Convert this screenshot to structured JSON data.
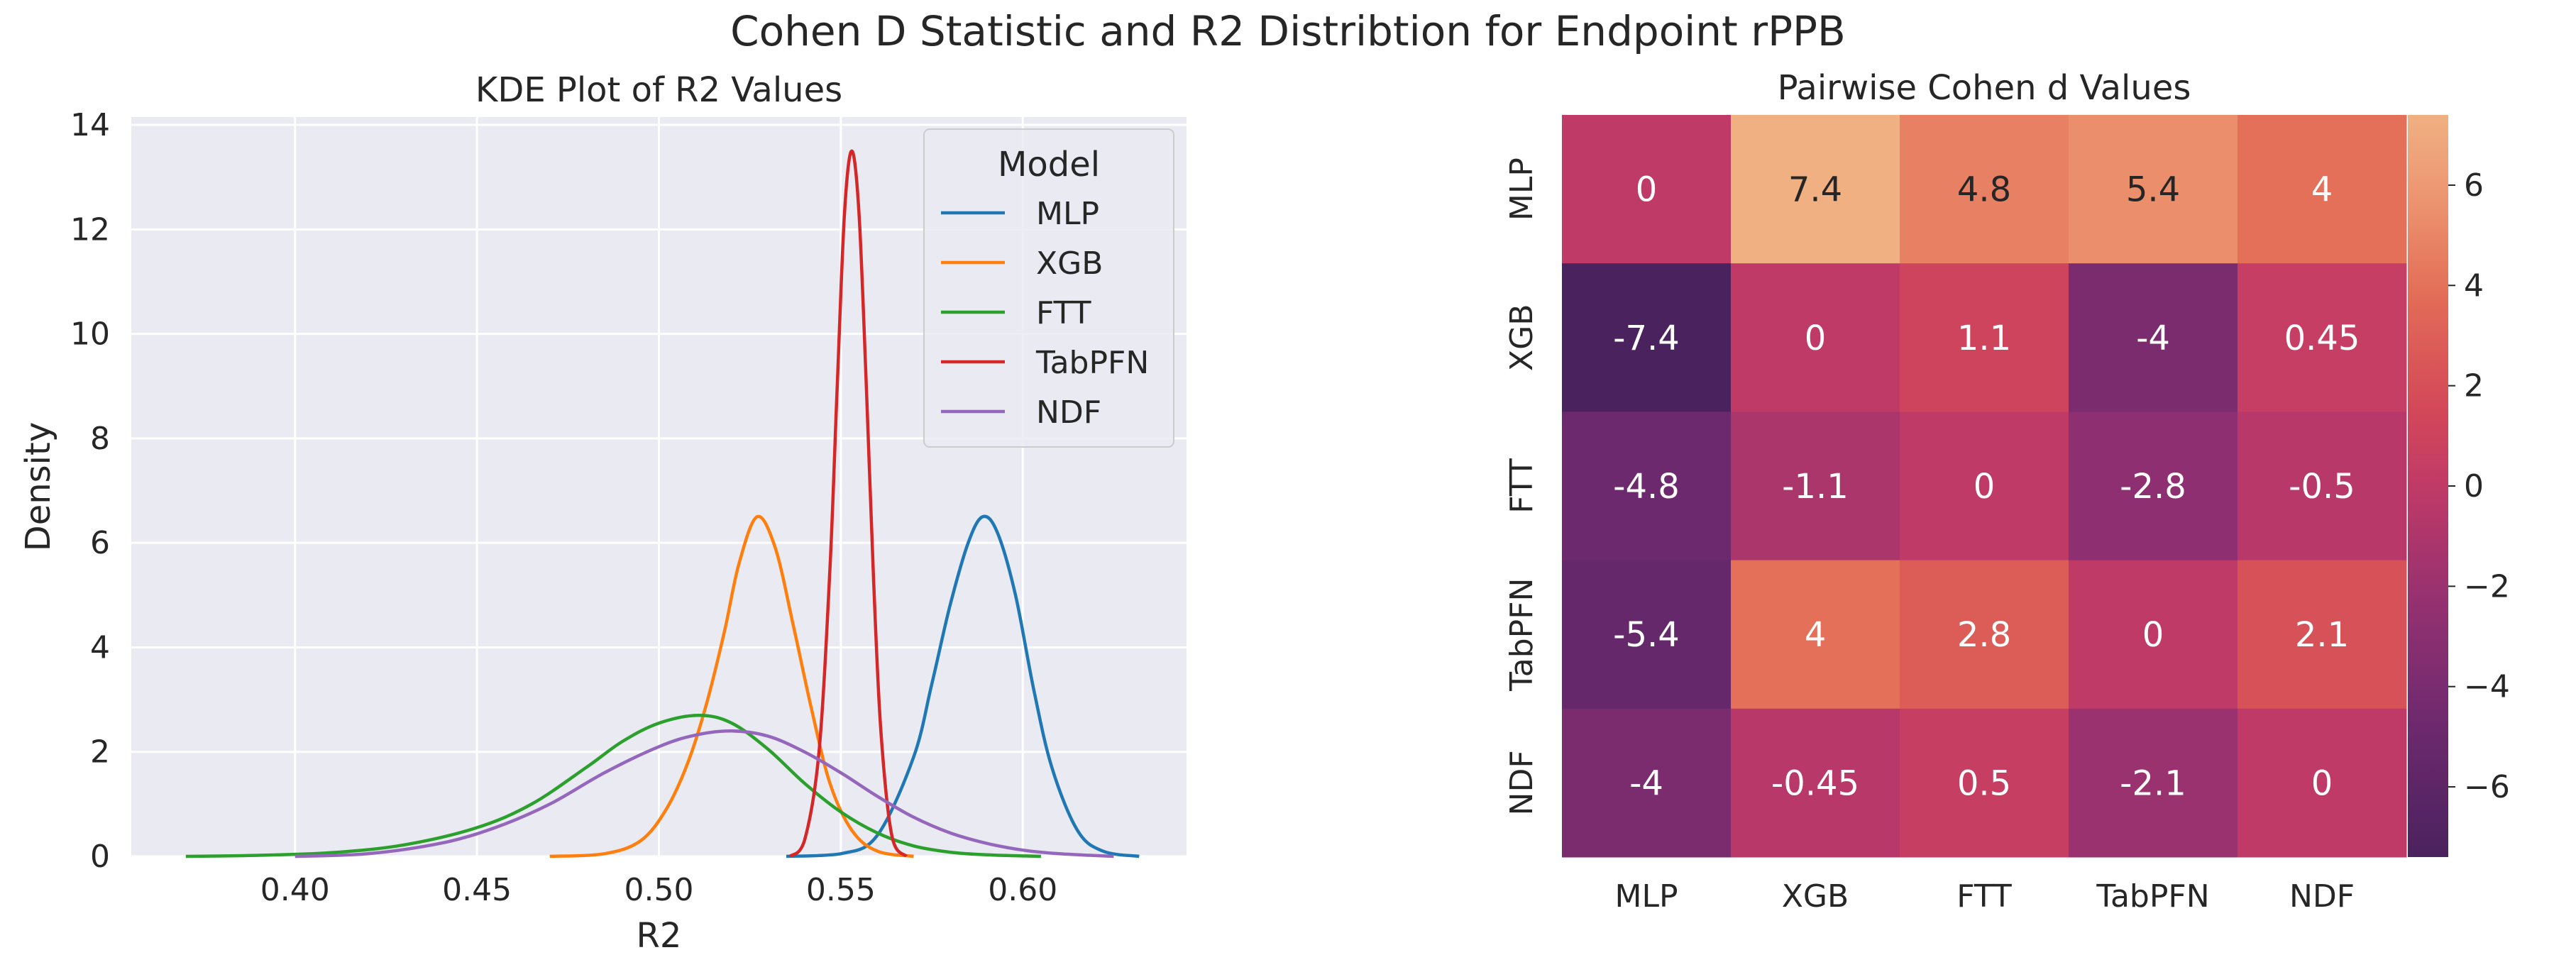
{
  "figure": {
    "suptitle": "Cohen D Statistic and R2 Distribtion for Endpoint rPPB"
  },
  "chart_data": [
    {
      "type": "line",
      "title": "KDE Plot of R2 Values",
      "xlabel": "R2",
      "ylabel": "Density",
      "xlim": [
        0.355,
        0.645
      ],
      "ylim": [
        0,
        14.15
      ],
      "xticks": [
        0.4,
        0.45,
        0.5,
        0.55,
        0.6
      ],
      "xtick_labels": [
        "0.40",
        "0.45",
        "0.50",
        "0.55",
        "0.60"
      ],
      "yticks": [
        0,
        2,
        4,
        6,
        8,
        10,
        12,
        14
      ],
      "grid": true,
      "legend": {
        "title": "Model",
        "placement": "top-right"
      },
      "series": [
        {
          "name": "MLP",
          "color": "#1f77b4",
          "x": [
            0.535,
            0.55,
            0.56,
            0.57,
            0.575,
            0.58,
            0.585,
            0.589,
            0.593,
            0.598,
            0.603,
            0.608,
            0.615,
            0.622,
            0.632
          ],
          "values": [
            0.0,
            0.05,
            0.4,
            1.9,
            3.3,
            4.8,
            6.0,
            6.5,
            6.2,
            5.0,
            3.2,
            1.7,
            0.5,
            0.1,
            0.0
          ]
        },
        {
          "name": "XGB",
          "color": "#ff7f0e",
          "x": [
            0.47,
            0.485,
            0.495,
            0.502,
            0.508,
            0.513,
            0.518,
            0.522,
            0.527,
            0.532,
            0.537,
            0.542,
            0.547,
            0.553,
            0.56,
            0.57
          ],
          "values": [
            0.0,
            0.05,
            0.3,
            0.9,
            1.8,
            2.9,
            4.3,
            5.6,
            6.5,
            5.9,
            4.4,
            2.8,
            1.4,
            0.5,
            0.1,
            0.0
          ]
        },
        {
          "name": "FTT",
          "color": "#2ca02c",
          "x": [
            0.37,
            0.39,
            0.41,
            0.43,
            0.45,
            0.465,
            0.48,
            0.49,
            0.5,
            0.511,
            0.52,
            0.53,
            0.54,
            0.55,
            0.56,
            0.57,
            0.58,
            0.59,
            0.605
          ],
          "values": [
            0.0,
            0.02,
            0.07,
            0.22,
            0.55,
            1.0,
            1.7,
            2.2,
            2.55,
            2.7,
            2.55,
            2.05,
            1.4,
            0.85,
            0.45,
            0.2,
            0.08,
            0.03,
            0.0
          ]
        },
        {
          "name": "TabPFN",
          "color": "#d62728",
          "x": [
            0.536,
            0.54,
            0.544,
            0.547,
            0.549,
            0.551,
            0.553,
            0.555,
            0.557,
            0.559,
            0.561,
            0.564,
            0.568
          ],
          "values": [
            0.0,
            0.3,
            2.0,
            5.5,
            9.0,
            12.3,
            13.5,
            12.3,
            9.0,
            5.3,
            2.4,
            0.4,
            0.0
          ]
        },
        {
          "name": "NDF",
          "color": "#9467bd",
          "x": [
            0.4,
            0.42,
            0.44,
            0.455,
            0.47,
            0.485,
            0.5,
            0.51,
            0.52,
            0.53,
            0.54,
            0.55,
            0.56,
            0.57,
            0.58,
            0.59,
            0.6,
            0.61,
            0.625
          ],
          "values": [
            0.0,
            0.05,
            0.25,
            0.55,
            1.0,
            1.6,
            2.1,
            2.32,
            2.4,
            2.3,
            2.0,
            1.6,
            1.15,
            0.75,
            0.45,
            0.25,
            0.12,
            0.05,
            0.0
          ]
        }
      ]
    },
    {
      "type": "heatmap",
      "title": "Pairwise Cohen d Values",
      "row_labels": [
        "MLP",
        "XGB",
        "FTT",
        "TabPFN",
        "NDF"
      ],
      "col_labels": [
        "MLP",
        "XGB",
        "FTT",
        "TabPFN",
        "NDF"
      ],
      "values": [
        [
          0,
          7.4,
          4.8,
          5.4,
          4
        ],
        [
          -7.4,
          0,
          1.1,
          -4,
          0.45
        ],
        [
          -4.8,
          -1.1,
          0,
          -2.8,
          -0.5
        ],
        [
          -5.4,
          4,
          2.8,
          0,
          2.1
        ],
        [
          -4,
          -0.45,
          0.5,
          -2.1,
          0
        ]
      ],
      "annotations": [
        [
          "0",
          "7.4",
          "4.8",
          "5.4",
          "4"
        ],
        [
          "-7.4",
          "0",
          "1.1",
          "-4",
          "0.45"
        ],
        [
          "-4.8",
          "-1.1",
          "0",
          "-2.8",
          "-0.5"
        ],
        [
          "-5.4",
          "4",
          "2.8",
          "0",
          "2.1"
        ],
        [
          "-4",
          "-0.45",
          "0.5",
          "-2.1",
          "0"
        ]
      ],
      "vlim": [
        -7.4,
        7.4
      ],
      "colormap": "flare",
      "colorbar": {
        "ticks": [
          -6,
          -4,
          -2,
          0,
          2,
          4,
          6
        ],
        "tick_labels": [
          "−6",
          "−4",
          "−2",
          "0",
          "2",
          "4",
          "6"
        ]
      }
    }
  ]
}
